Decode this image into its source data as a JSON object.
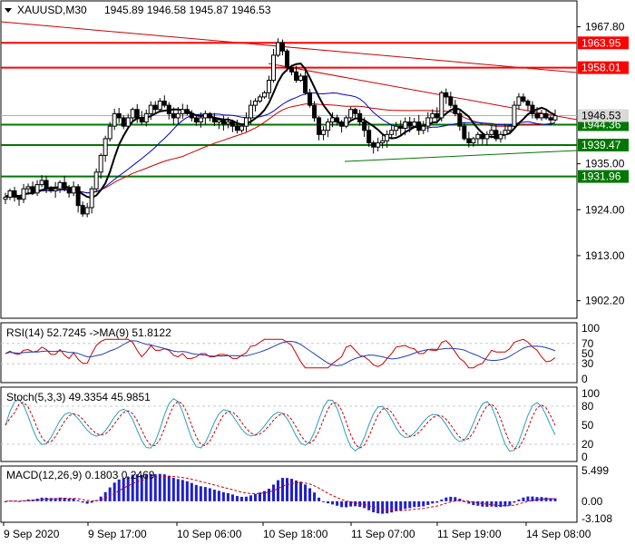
{
  "header": {
    "symbol": "XAUUSD,M30",
    "ohlc": "1945.89 1946.58 1945.87 1946.53",
    "toggle_icon": "triangle-down-icon"
  },
  "colors": {
    "background": "#ffffff",
    "candle": "#000000",
    "ma_fast": "#000000",
    "ma_mid": "#0000cc",
    "ma_slow": "#cc0000",
    "resistance": "#ff0000",
    "support": "#007700",
    "trend_red": "#cc0000",
    "trend_green": "#007700",
    "rsi_line": "#1f3fbf",
    "rsi_ma": "#cc0000",
    "stoch_main": "#2a9fbf",
    "stoch_signal": "#cc0000",
    "macd_hist": "#1f1fd0",
    "macd_signal": "#cc0000",
    "grid": "#c8c8c8",
    "current_price_bg": "#d9d9d9"
  },
  "chart_data": [
    {
      "type": "candlestick",
      "name": "price",
      "x_tick_labels": [
        "9 Sep 2020",
        "9 Sep 17:00",
        "10 Sep 06:00",
        "10 Sep 18:00",
        "11 Sep 07:00",
        "11 Sep 19:00",
        "14 Sep 08:00"
      ],
      "y_tick_labels": [
        "1967.80",
        "1935.00",
        "1924.00",
        "1913.00",
        "1902.20"
      ],
      "ylim": [
        1898,
        1974
      ],
      "price_levels": [
        {
          "value": 1963.95,
          "label": "1963.95",
          "color": "#ff0000"
        },
        {
          "value": 1958.01,
          "label": "1958.01",
          "color": "#ff0000"
        },
        {
          "value": 1944.36,
          "label": "1944.36",
          "color": "#007700"
        },
        {
          "value": 1939.47,
          "label": "1939.47",
          "color": "#007700"
        },
        {
          "value": 1931.96,
          "label": "1931.96",
          "color": "#007700"
        }
      ],
      "current_price": {
        "value": 1946.53,
        "label": "1946.53"
      },
      "closes": [
        1927,
        1928.5,
        1927,
        1926.5,
        1929,
        1929.5,
        1928,
        1930,
        1931,
        1929,
        1928.5,
        1929,
        1930.5,
        1929,
        1928,
        1929.5,
        1925,
        1923,
        1924.5,
        1929,
        1933,
        1937,
        1941,
        1944,
        1947,
        1946,
        1944,
        1946,
        1948,
        1946,
        1945,
        1947,
        1949,
        1948,
        1950,
        1949,
        1947,
        1946,
        1947,
        1948,
        1947,
        1946,
        1945,
        1946,
        1947,
        1946,
        1945,
        1945.5,
        1944.5,
        1945,
        1944,
        1943,
        1944,
        1946,
        1949,
        1950,
        1951,
        1952,
        1955,
        1961,
        1964,
        1962,
        1958,
        1957,
        1955,
        1956,
        1952,
        1949,
        1946,
        1942,
        1943,
        1945,
        1946,
        1945,
        1944,
        1946,
        1948,
        1947,
        1945,
        1943,
        1940,
        1939,
        1940,
        1940.5,
        1942,
        1943,
        1944,
        1943.5,
        1945,
        1944,
        1945,
        1943,
        1944,
        1946,
        1947,
        1946,
        1952,
        1951,
        1949,
        1947,
        1944,
        1941,
        1940,
        1941,
        1942,
        1941,
        1942,
        1943,
        1941,
        1942,
        1943,
        1944,
        1949,
        1951,
        1950,
        1949,
        1947,
        1946,
        1947,
        1946,
        1945.5,
        1946.5
      ],
      "rsi": {
        "label": "RSI(14) 52.7245  ->MA(9) 51.8122",
        "levels": [
          "100",
          "70",
          "50",
          "30",
          "0"
        ],
        "ylim": [
          0,
          100
        ],
        "last_value": 52.7245,
        "ma_value": 51.8122
      },
      "stochastic": {
        "label": "Stoch(5,3,3) 49.3354 45.9851",
        "levels": [
          "100",
          "80",
          "50",
          "20",
          "0"
        ],
        "ylim": [
          0,
          100
        ],
        "main_value": 49.3354,
        "signal_value": 45.9851
      },
      "macd": {
        "label": "MACD(12,26,9) 0.1803 0.2469",
        "levels": [
          "5.499",
          "0.00",
          "-3.108"
        ],
        "ylim": [
          -3.108,
          5.499
        ],
        "main_value": 0.1803,
        "signal_value": 0.2469
      }
    }
  ]
}
